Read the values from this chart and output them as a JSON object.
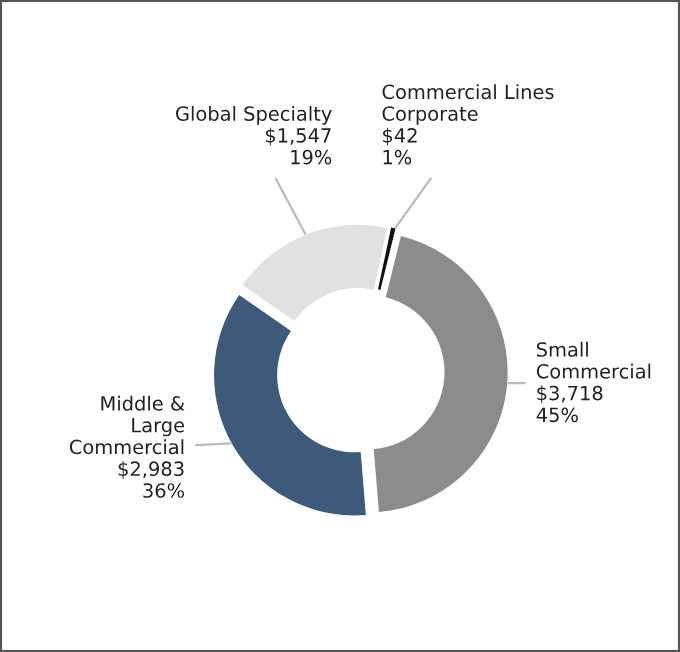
{
  "chart_data": {
    "type": "donut",
    "categories": [
      "Commercial Lines\nCorporate",
      "Small\nCommercial",
      "Middle &\nLarge\nCommercial",
      "Global Specialty"
    ],
    "values": [
      42,
      3718,
      2983,
      1547
    ],
    "colors": [
      "#111111",
      "#8c8c8c",
      "#3e5a7a",
      "#e1e1e1"
    ],
    "value_labels": [
      "$42\n1%",
      "$3,718\n45%",
      "$2,983\n36%",
      "$1,547\n19%"
    ]
  }
}
